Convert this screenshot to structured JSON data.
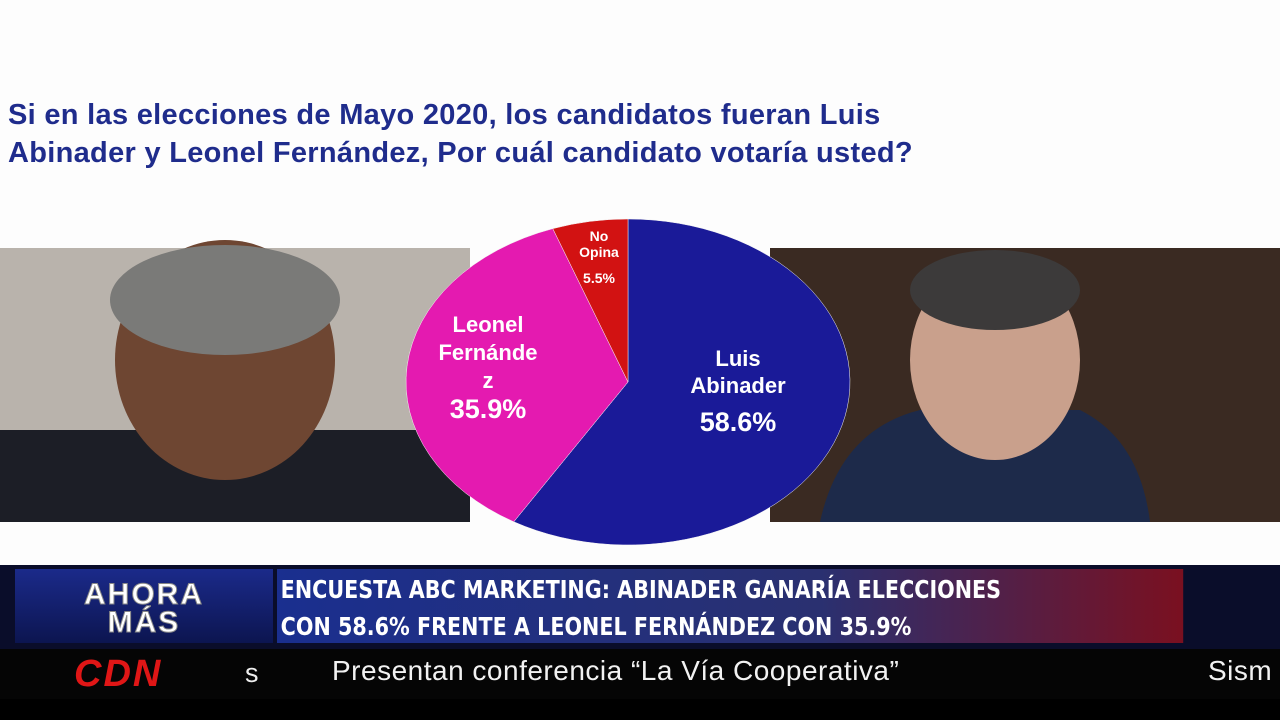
{
  "title": "Si en las elecciones de Mayo 2020, los candidatos fueran  Luis\nAbinader y Leonel Fernández, Por cuál candidato votaría usted?",
  "chart_data": {
    "type": "pie",
    "categories": [
      "Luis\nAbinader",
      "Leonel\nFernánde\nz",
      "No\nOpina"
    ],
    "values": [
      58.6,
      35.9,
      5.5
    ],
    "value_labels": [
      "58.6%",
      "35.9%",
      "5.5%"
    ],
    "colors": [
      "#1a1a98",
      "#e41ab0",
      "#d21212"
    ]
  },
  "lower_third": {
    "program": "AHORA\nMÁS",
    "headline": "ENCUESTA ABC MARKETING: ABINADER GANARÍA ELECCIONES\nCON 58.6% FRENTE A LEONEL FERNÁNDEZ CON 35.9%"
  },
  "ticker": {
    "channel": "CDN",
    "channel_suffix": "s",
    "items": [
      "Presentan conferencia “La Vía Cooperativa”",
      "Sism"
    ]
  }
}
